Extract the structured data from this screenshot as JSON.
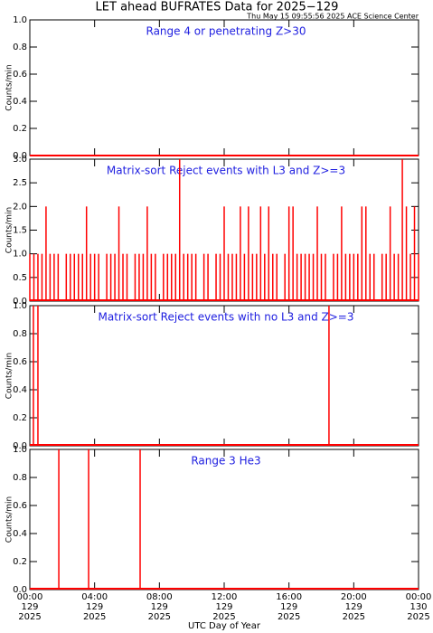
{
  "title": "LET ahead BUFRATES Data for 2025−129",
  "subtitle": "Thu May 15 09:55:56 2025 ACE Science Center",
  "x_axis": {
    "label": "UTC Day of Year",
    "xlim": [
      0,
      24
    ],
    "xticks": [
      {
        "value": 0,
        "label": [
          "00:00",
          "129",
          "2025"
        ]
      },
      {
        "value": 4,
        "label": [
          "04:00",
          "129",
          "2025"
        ]
      },
      {
        "value": 8,
        "label": [
          "08:00",
          "129",
          "2025"
        ]
      },
      {
        "value": 12,
        "label": [
          "12:00",
          "129",
          "2025"
        ]
      },
      {
        "value": 16,
        "label": [
          "16:00",
          "129",
          "2025"
        ]
      },
      {
        "value": 20,
        "label": [
          "20:00",
          "129",
          "2025"
        ]
      },
      {
        "value": 24,
        "label": [
          "00:00",
          "130",
          "2025"
        ]
      }
    ]
  },
  "chart_data": [
    {
      "type": "line",
      "title": "Range 4 or  penetrating Z>30",
      "ylabel": "Counts/min",
      "color": "#ff0000",
      "ylim": [
        0,
        1
      ],
      "yticks": [
        {
          "value": 0,
          "label": "0.0"
        },
        {
          "value": 0.2,
          "label": "0.2"
        },
        {
          "value": 0.4,
          "label": "0.4"
        },
        {
          "value": 0.6,
          "label": "0.6"
        },
        {
          "value": 0.8,
          "label": "0.8"
        },
        {
          "value": 1,
          "label": "1.0"
        }
      ],
      "x": [
        0,
        24
      ],
      "values": [
        0,
        0
      ]
    },
    {
      "type": "spike",
      "title": "Matrix-sort Reject events with L3 and Z>=3",
      "ylabel": "Counts/min",
      "color": "#ff0000",
      "ylim": [
        0,
        3
      ],
      "yticks": [
        {
          "value": 0,
          "label": "0.0"
        },
        {
          "value": 0.5,
          "label": "0.5"
        },
        {
          "value": 1,
          "label": "1.0"
        },
        {
          "value": 1.5,
          "label": "1.5"
        },
        {
          "value": 2,
          "label": "2.0"
        },
        {
          "value": 2.5,
          "label": "2.5"
        },
        {
          "value": 3,
          "label": "3.0"
        }
      ],
      "x": [
        0,
        0.25,
        0.5,
        0.75,
        1,
        1.25,
        1.5,
        1.75,
        2,
        2.25,
        2.5,
        2.75,
        3,
        3.25,
        3.5,
        3.75,
        4,
        4.25,
        4.5,
        4.75,
        5,
        5.25,
        5.5,
        5.75,
        6,
        6.25,
        6.5,
        6.75,
        7,
        7.25,
        7.5,
        7.75,
        8,
        8.25,
        8.5,
        8.75,
        9,
        9.25,
        9.5,
        9.75,
        10,
        10.25,
        10.5,
        10.75,
        11,
        11.25,
        11.5,
        11.75,
        12,
        12.25,
        12.5,
        12.75,
        13,
        13.25,
        13.5,
        13.75,
        14,
        14.25,
        14.5,
        14.75,
        15,
        15.25,
        15.5,
        15.75,
        16,
        16.25,
        16.5,
        16.75,
        17,
        17.25,
        17.5,
        17.75,
        18,
        18.25,
        18.5,
        18.75,
        19,
        19.25,
        19.5,
        19.75,
        20,
        20.25,
        20.5,
        20.75,
        21,
        21.25,
        21.5,
        21.75,
        22,
        22.25,
        22.5,
        22.75,
        23,
        23.25,
        23.5,
        23.75,
        24
      ],
      "values": [
        1,
        1,
        1,
        1,
        2,
        1,
        1,
        1,
        0,
        1,
        1,
        1,
        1,
        1,
        2,
        1,
        1,
        1,
        0,
        1,
        1,
        1,
        2,
        1,
        1,
        0,
        1,
        1,
        1,
        2,
        1,
        1,
        0,
        1,
        1,
        1,
        1,
        3,
        1,
        1,
        1,
        1,
        0,
        1,
        1,
        0,
        1,
        1,
        2,
        1,
        1,
        1,
        2,
        1,
        2,
        1,
        1,
        2,
        1,
        2,
        1,
        1,
        0,
        1,
        2,
        2,
        1,
        1,
        1,
        1,
        1,
        2,
        1,
        1,
        0,
        1,
        1,
        2,
        1,
        1,
        1,
        1,
        2,
        2,
        1,
        1,
        0,
        1,
        1,
        2,
        1,
        1,
        3,
        2,
        1,
        2,
        1
      ]
    },
    {
      "type": "spike",
      "title": "Matrix-sort Reject events with no L3 and Z>=3",
      "ylabel": "Counts/min",
      "color": "#ff0000",
      "ylim": [
        0,
        1
      ],
      "yticks": [
        {
          "value": 0,
          "label": "0.0"
        },
        {
          "value": 0.2,
          "label": "0.2"
        },
        {
          "value": 0.4,
          "label": "0.4"
        },
        {
          "value": 0.6,
          "label": "0.6"
        },
        {
          "value": 0.8,
          "label": "0.8"
        },
        {
          "value": 1,
          "label": "1.0"
        }
      ],
      "x": [
        0.22,
        0.5,
        18.47
      ],
      "values": [
        1,
        1,
        1
      ]
    },
    {
      "type": "spike",
      "title": "Range 3 He3",
      "ylabel": "Counts/min",
      "color": "#ff0000",
      "ylim": [
        0,
        1
      ],
      "yticks": [
        {
          "value": 0,
          "label": "0.0"
        },
        {
          "value": 0.2,
          "label": "0.2"
        },
        {
          "value": 0.4,
          "label": "0.4"
        },
        {
          "value": 0.6,
          "label": "0.6"
        },
        {
          "value": 0.8,
          "label": "0.8"
        },
        {
          "value": 1,
          "label": "1.0"
        }
      ],
      "x": [
        1.79,
        3.63,
        6.81
      ],
      "values": [
        1,
        1,
        1
      ]
    }
  ]
}
